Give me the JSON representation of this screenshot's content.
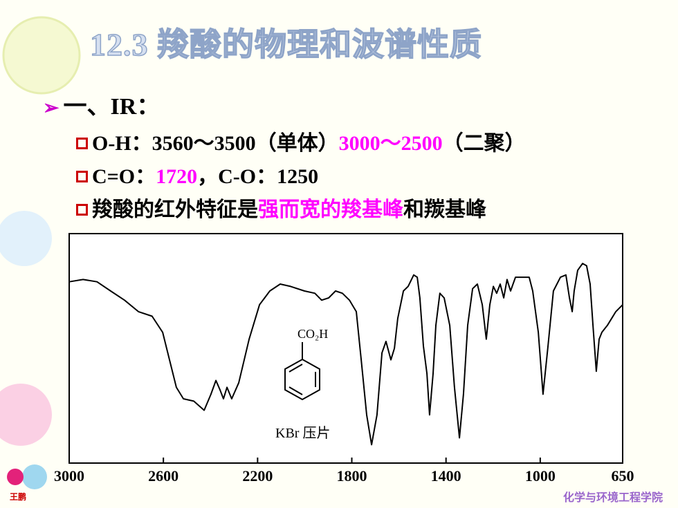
{
  "slide": {
    "title": "12.3 羧酸的物理和波谱性质",
    "heading": "一、IR：",
    "items": [
      [
        {
          "text": "O-H：3560～3500（单体）",
          "color": "#000000"
        },
        {
          "text": "3000～2500",
          "color": "#ff00ff"
        },
        {
          "text": "（二聚）",
          "color": "#000000"
        }
      ],
      [
        {
          "text": "C=O：",
          "color": "#000000"
        },
        {
          "text": "1720",
          "color": "#ff00ff"
        },
        {
          "text": "，C-O：1250",
          "color": "#000000"
        }
      ],
      [
        {
          "text": "羧酸的红外特征是",
          "color": "#000000"
        },
        {
          "text": "强而宽的羧基峰",
          "color": "#ff00ff"
        },
        {
          "text": "和羰基峰",
          "color": "#000000"
        }
      ]
    ],
    "author": "王鹏",
    "school": "化学与环境工程学院"
  },
  "chart_data": {
    "type": "line",
    "color": "#000000",
    "structure_label": "CO₂H",
    "sample_label": "KBr 压片",
    "xlim": [
      3000,
      650
    ],
    "xticks": [
      3000,
      2600,
      2200,
      1800,
      1400,
      1000,
      650
    ],
    "ylim": [
      0,
      100
    ],
    "x": [
      3000,
      2941,
      2882,
      2824,
      2765,
      2706,
      2648,
      2603,
      2574,
      2545,
      2515,
      2471,
      2427,
      2398,
      2377,
      2360,
      2345,
      2330,
      2310,
      2280,
      2236,
      2192,
      2148,
      2104,
      2060,
      2001,
      1957,
      1928,
      1898,
      1869,
      1840,
      1810,
      1781,
      1760,
      1737,
      1716,
      1693,
      1672,
      1655,
      1634,
      1619,
      1605,
      1581,
      1561,
      1537,
      1522,
      1511,
      1496,
      1481,
      1470,
      1455,
      1443,
      1426,
      1408,
      1384,
      1364,
      1343,
      1326,
      1308,
      1287,
      1267,
      1246,
      1229,
      1214,
      1199,
      1185,
      1170,
      1155,
      1141,
      1126,
      1105,
      1091,
      1067,
      1047,
      1032,
      1008,
      988,
      967,
      944,
      914,
      891,
      876,
      864,
      856,
      841,
      820,
      803,
      788,
      776,
      762,
      750,
      738,
      715,
      679,
      650
    ],
    "values": [
      79,
      80,
      79,
      75,
      71,
      66,
      64,
      57,
      45,
      33,
      28,
      27,
      23,
      30,
      36,
      32,
      28,
      33,
      28,
      35,
      54,
      69,
      75,
      78,
      77,
      75,
      74,
      71,
      72,
      75,
      74,
      71,
      66,
      45,
      21,
      8,
      21,
      48,
      53,
      45,
      50,
      63,
      75,
      77,
      82,
      81,
      72,
      51,
      39,
      21,
      39,
      60,
      74,
      72,
      60,
      33,
      11,
      30,
      60,
      76,
      78,
      69,
      54,
      69,
      77,
      74,
      78,
      72,
      80,
      75,
      81,
      81,
      81,
      81,
      75,
      57,
      30,
      51,
      75,
      81,
      82,
      72,
      66,
      75,
      84,
      87,
      86,
      78,
      60,
      40,
      54,
      57,
      60,
      66,
      69
    ]
  }
}
